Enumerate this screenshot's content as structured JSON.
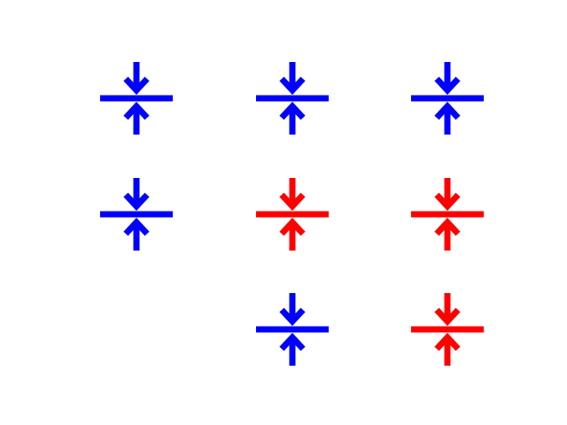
{
  "colors": {
    "background": "#ffffff",
    "blue": "#0000ff",
    "red": "#ff0000"
  },
  "grid": {
    "rows": [
      [
        "blue",
        "blue",
        "blue"
      ],
      [
        "blue",
        "red",
        "red"
      ],
      [
        null,
        "blue",
        "red"
      ]
    ]
  },
  "icon": {
    "name": "compress-vertical-icon"
  }
}
